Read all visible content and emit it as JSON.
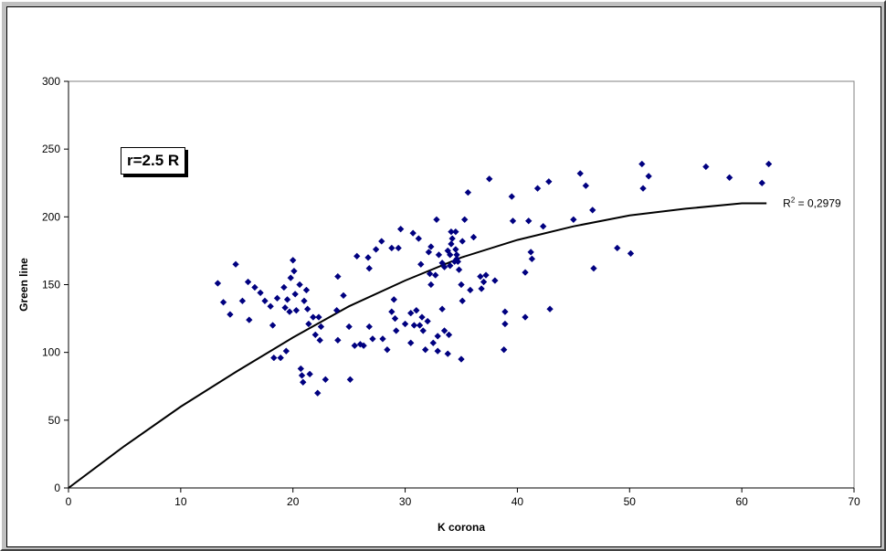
{
  "chart_data": {
    "type": "scatter",
    "xlabel": "K corona",
    "ylabel": "Green line",
    "xlim": [
      0,
      70
    ],
    "ylim": [
      0,
      300
    ],
    "x_ticks": [
      0,
      10,
      20,
      30,
      40,
      50,
      60,
      70
    ],
    "y_ticks": [
      0,
      50,
      100,
      150,
      200,
      250,
      300
    ],
    "grid": false,
    "annotation": "r=2.5 R",
    "marker_color": "#000080",
    "trendline": {
      "type": "polynomial",
      "r2_label_prefix": "R",
      "r2_label_sup": "2",
      "r2_label_value": " = 0,2979",
      "color": "#000000",
      "points": [
        [
          0,
          0
        ],
        [
          5,
          31
        ],
        [
          10,
          60
        ],
        [
          15,
          86
        ],
        [
          20,
          111
        ],
        [
          25,
          134
        ],
        [
          30,
          153
        ],
        [
          35,
          170
        ],
        [
          40,
          183
        ],
        [
          45,
          193
        ],
        [
          50,
          201
        ],
        [
          55,
          206
        ],
        [
          60,
          210
        ],
        [
          62.2,
          210
        ]
      ]
    },
    "points": [
      [
        13.3,
        151
      ],
      [
        13.8,
        137
      ],
      [
        14.4,
        128
      ],
      [
        14.9,
        165
      ],
      [
        15.5,
        138
      ],
      [
        16,
        152
      ],
      [
        16.1,
        124
      ],
      [
        16.6,
        148
      ],
      [
        17.1,
        144
      ],
      [
        17.5,
        138
      ],
      [
        18,
        134
      ],
      [
        18.2,
        120
      ],
      [
        18.3,
        96
      ],
      [
        18.6,
        140
      ],
      [
        18.9,
        96
      ],
      [
        19.2,
        148
      ],
      [
        19.3,
        133
      ],
      [
        19.4,
        101
      ],
      [
        19.5,
        139
      ],
      [
        19.7,
        130
      ],
      [
        19.8,
        155
      ],
      [
        20,
        168
      ],
      [
        20.1,
        160
      ],
      [
        20.2,
        143
      ],
      [
        20.3,
        131
      ],
      [
        20.6,
        150
      ],
      [
        20.7,
        88
      ],
      [
        20.8,
        83
      ],
      [
        20.9,
        78
      ],
      [
        21,
        138
      ],
      [
        21.2,
        146
      ],
      [
        21.3,
        132
      ],
      [
        21.4,
        121
      ],
      [
        21.5,
        84
      ],
      [
        21.8,
        126
      ],
      [
        22,
        113
      ],
      [
        22.2,
        70
      ],
      [
        22.3,
        126
      ],
      [
        22.4,
        109
      ],
      [
        22.5,
        119
      ],
      [
        22.9,
        80
      ],
      [
        23.9,
        131
      ],
      [
        24,
        156
      ],
      [
        24,
        109
      ],
      [
        24.5,
        142
      ],
      [
        25,
        119
      ],
      [
        25.1,
        80
      ],
      [
        25.5,
        105
      ],
      [
        25.7,
        171
      ],
      [
        26,
        106
      ],
      [
        26.3,
        105
      ],
      [
        26.7,
        170
      ],
      [
        26.8,
        162
      ],
      [
        26.8,
        119
      ],
      [
        27.1,
        110
      ],
      [
        27.4,
        176
      ],
      [
        27.9,
        182
      ],
      [
        28,
        110
      ],
      [
        28.4,
        102
      ],
      [
        28.8,
        130
      ],
      [
        28.8,
        177
      ],
      [
        29,
        139
      ],
      [
        29.1,
        125
      ],
      [
        29.2,
        116
      ],
      [
        29.4,
        177
      ],
      [
        29.6,
        191
      ],
      [
        30,
        121
      ],
      [
        30.5,
        129
      ],
      [
        30.5,
        107
      ],
      [
        30.7,
        188
      ],
      [
        30.8,
        120
      ],
      [
        31,
        131
      ],
      [
        31.2,
        184
      ],
      [
        31.3,
        120
      ],
      [
        31.4,
        165
      ],
      [
        31.5,
        126
      ],
      [
        31.6,
        116
      ],
      [
        31.8,
        102
      ],
      [
        32,
        123
      ],
      [
        32.1,
        174
      ],
      [
        32.2,
        158
      ],
      [
        32.3,
        150
      ],
      [
        32.3,
        178
      ],
      [
        32.5,
        107
      ],
      [
        32.7,
        157
      ],
      [
        32.8,
        198
      ],
      [
        32.9,
        112
      ],
      [
        32.9,
        101
      ],
      [
        33,
        172
      ],
      [
        33.3,
        166
      ],
      [
        33.3,
        132
      ],
      [
        33.5,
        163
      ],
      [
        33.5,
        116
      ],
      [
        33.8,
        175
      ],
      [
        33.8,
        99
      ],
      [
        33.9,
        113
      ],
      [
        34,
        164
      ],
      [
        34,
        172
      ],
      [
        34.1,
        180
      ],
      [
        34.1,
        189
      ],
      [
        34.2,
        184
      ],
      [
        34.4,
        167
      ],
      [
        34.5,
        176
      ],
      [
        34.5,
        189
      ],
      [
        34.6,
        172
      ],
      [
        34.6,
        169
      ],
      [
        34.7,
        167
      ],
      [
        34.8,
        161
      ],
      [
        35,
        95
      ],
      [
        35,
        150
      ],
      [
        35.1,
        182
      ],
      [
        35.1,
        138
      ],
      [
        35.3,
        198
      ],
      [
        35.6,
        218
      ],
      [
        35.8,
        146
      ],
      [
        36.1,
        185
      ],
      [
        36.7,
        156
      ],
      [
        36.8,
        147
      ],
      [
        37,
        152
      ],
      [
        37.2,
        157
      ],
      [
        37.5,
        228
      ],
      [
        38,
        153
      ],
      [
        38.8,
        102
      ],
      [
        38.9,
        130
      ],
      [
        38.9,
        121
      ],
      [
        39.5,
        215
      ],
      [
        39.6,
        197
      ],
      [
        40.7,
        126
      ],
      [
        40.7,
        159
      ],
      [
        41,
        197
      ],
      [
        41.2,
        174
      ],
      [
        41.3,
        169
      ],
      [
        41.8,
        221
      ],
      [
        42.3,
        193
      ],
      [
        42.8,
        226
      ],
      [
        42.9,
        132
      ],
      [
        45,
        198
      ],
      [
        45.6,
        232
      ],
      [
        46.1,
        223
      ],
      [
        46.7,
        205
      ],
      [
        46.8,
        162
      ],
      [
        48.9,
        177
      ],
      [
        50.1,
        173
      ],
      [
        51.1,
        239
      ],
      [
        51.2,
        221
      ],
      [
        51.7,
        230
      ],
      [
        56.8,
        237
      ],
      [
        58.9,
        229
      ],
      [
        61.8,
        225
      ],
      [
        62.4,
        239
      ]
    ]
  }
}
